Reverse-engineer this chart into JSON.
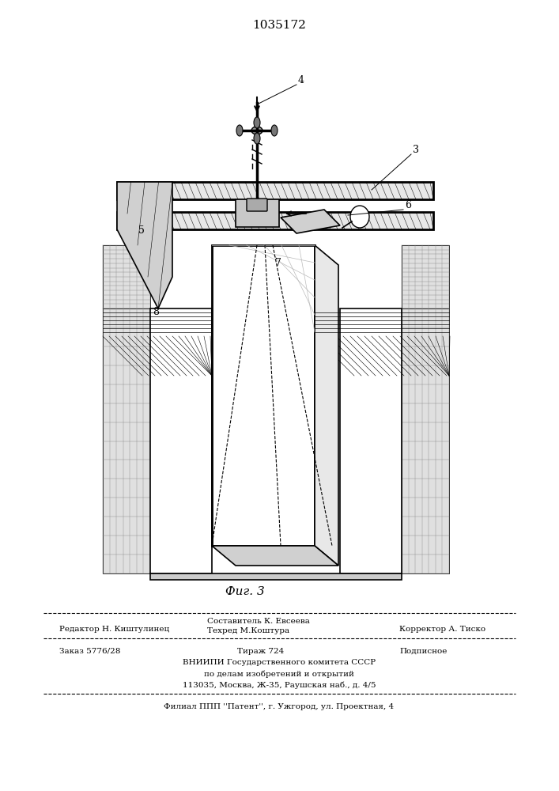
{
  "patent_number": "1035172",
  "fig_label": "Фиг. 3",
  "background_color": "#ffffff",
  "text_color": "#000000",
  "editor_line": "Редактор Н. Киштулинец",
  "composer_line1": "Составитель К. Евсеева",
  "composer_line2": "Техред М.Коштура",
  "corrector_line": "Корректор А. Тиско",
  "order_line": "Заказ 5776/28",
  "tirazh_line": "Тираж 724",
  "podpisnoe_line": "Подписное",
  "vniip_line1": "ВНИИПИ Государственного комитета СССР",
  "vniip_line2": "по делам изобретений и открытий",
  "vniip_line3": "113035, Москва, Ж-35, Раушская наб., д. 4/5",
  "filial_line": "Филиал ППП ''Патент'', г. Ужгород, ул. Проектная, 4"
}
